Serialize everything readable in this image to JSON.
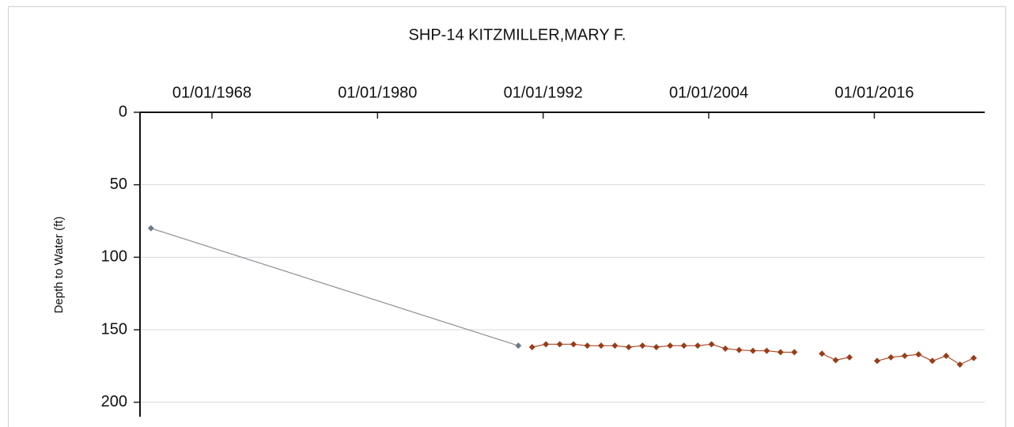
{
  "chart_data": {
    "type": "line",
    "title": "SHP-14  KITZMILLER,MARY F.",
    "y_label": "Depth to Water (ft)",
    "y_inverted": true,
    "grid": true,
    "xlim": [
      "1962-10-15",
      "2024-01-01"
    ],
    "xticks": [
      {
        "value": "1968-01-01",
        "label": "01/01/1968"
      },
      {
        "value": "1980-01-01",
        "label": "01/01/1980"
      },
      {
        "value": "1992-01-01",
        "label": "01/01/1992"
      },
      {
        "value": "2004-01-01",
        "label": "01/01/2004"
      },
      {
        "value": "2016-01-01",
        "label": "01/01/2016"
      }
    ],
    "ylim": [
      0,
      210
    ],
    "yticks": [
      0,
      50,
      100,
      150,
      200
    ],
    "series": [
      {
        "color": "#8a8f96",
        "marker_color": "#6d7a8a",
        "x": [
          "1963-08-01",
          "1990-03-15"
        ],
        "values": [
          80,
          161
        ]
      },
      {
        "color": "#a84a2a",
        "marker_color": "#9a3c18",
        "x": [
          "1991-03-15",
          "1992-03-15",
          "1993-03-15",
          "1994-03-15",
          "1995-03-15",
          "1996-03-15",
          "1997-03-15",
          "1998-03-15",
          "1999-03-15",
          "2000-03-15",
          "2001-03-15",
          "2002-03-15",
          "2003-03-15",
          "2004-03-15",
          "2005-03-15",
          "2006-03-15",
          "2007-03-15",
          "2008-03-15",
          "2009-03-15",
          "2010-03-15",
          "2011-03-15",
          "2012-03-15",
          "2013-03-15",
          "2014-03-15",
          "2015-03-15",
          "2016-03-15",
          "2017-03-15",
          "2018-03-15",
          "2019-03-15",
          "2020-03-15",
          "2021-03-15",
          "2022-03-15",
          "2023-03-15"
        ],
        "values": [
          162,
          160,
          160,
          160,
          161,
          161,
          161,
          162,
          161,
          162,
          161,
          161,
          161,
          160,
          163,
          164,
          164.5,
          164.5,
          165.5,
          165.5,
          null,
          166.5,
          171,
          169,
          null,
          171.5,
          169,
          168,
          167,
          171.5,
          168,
          174,
          169.5
        ]
      }
    ]
  }
}
